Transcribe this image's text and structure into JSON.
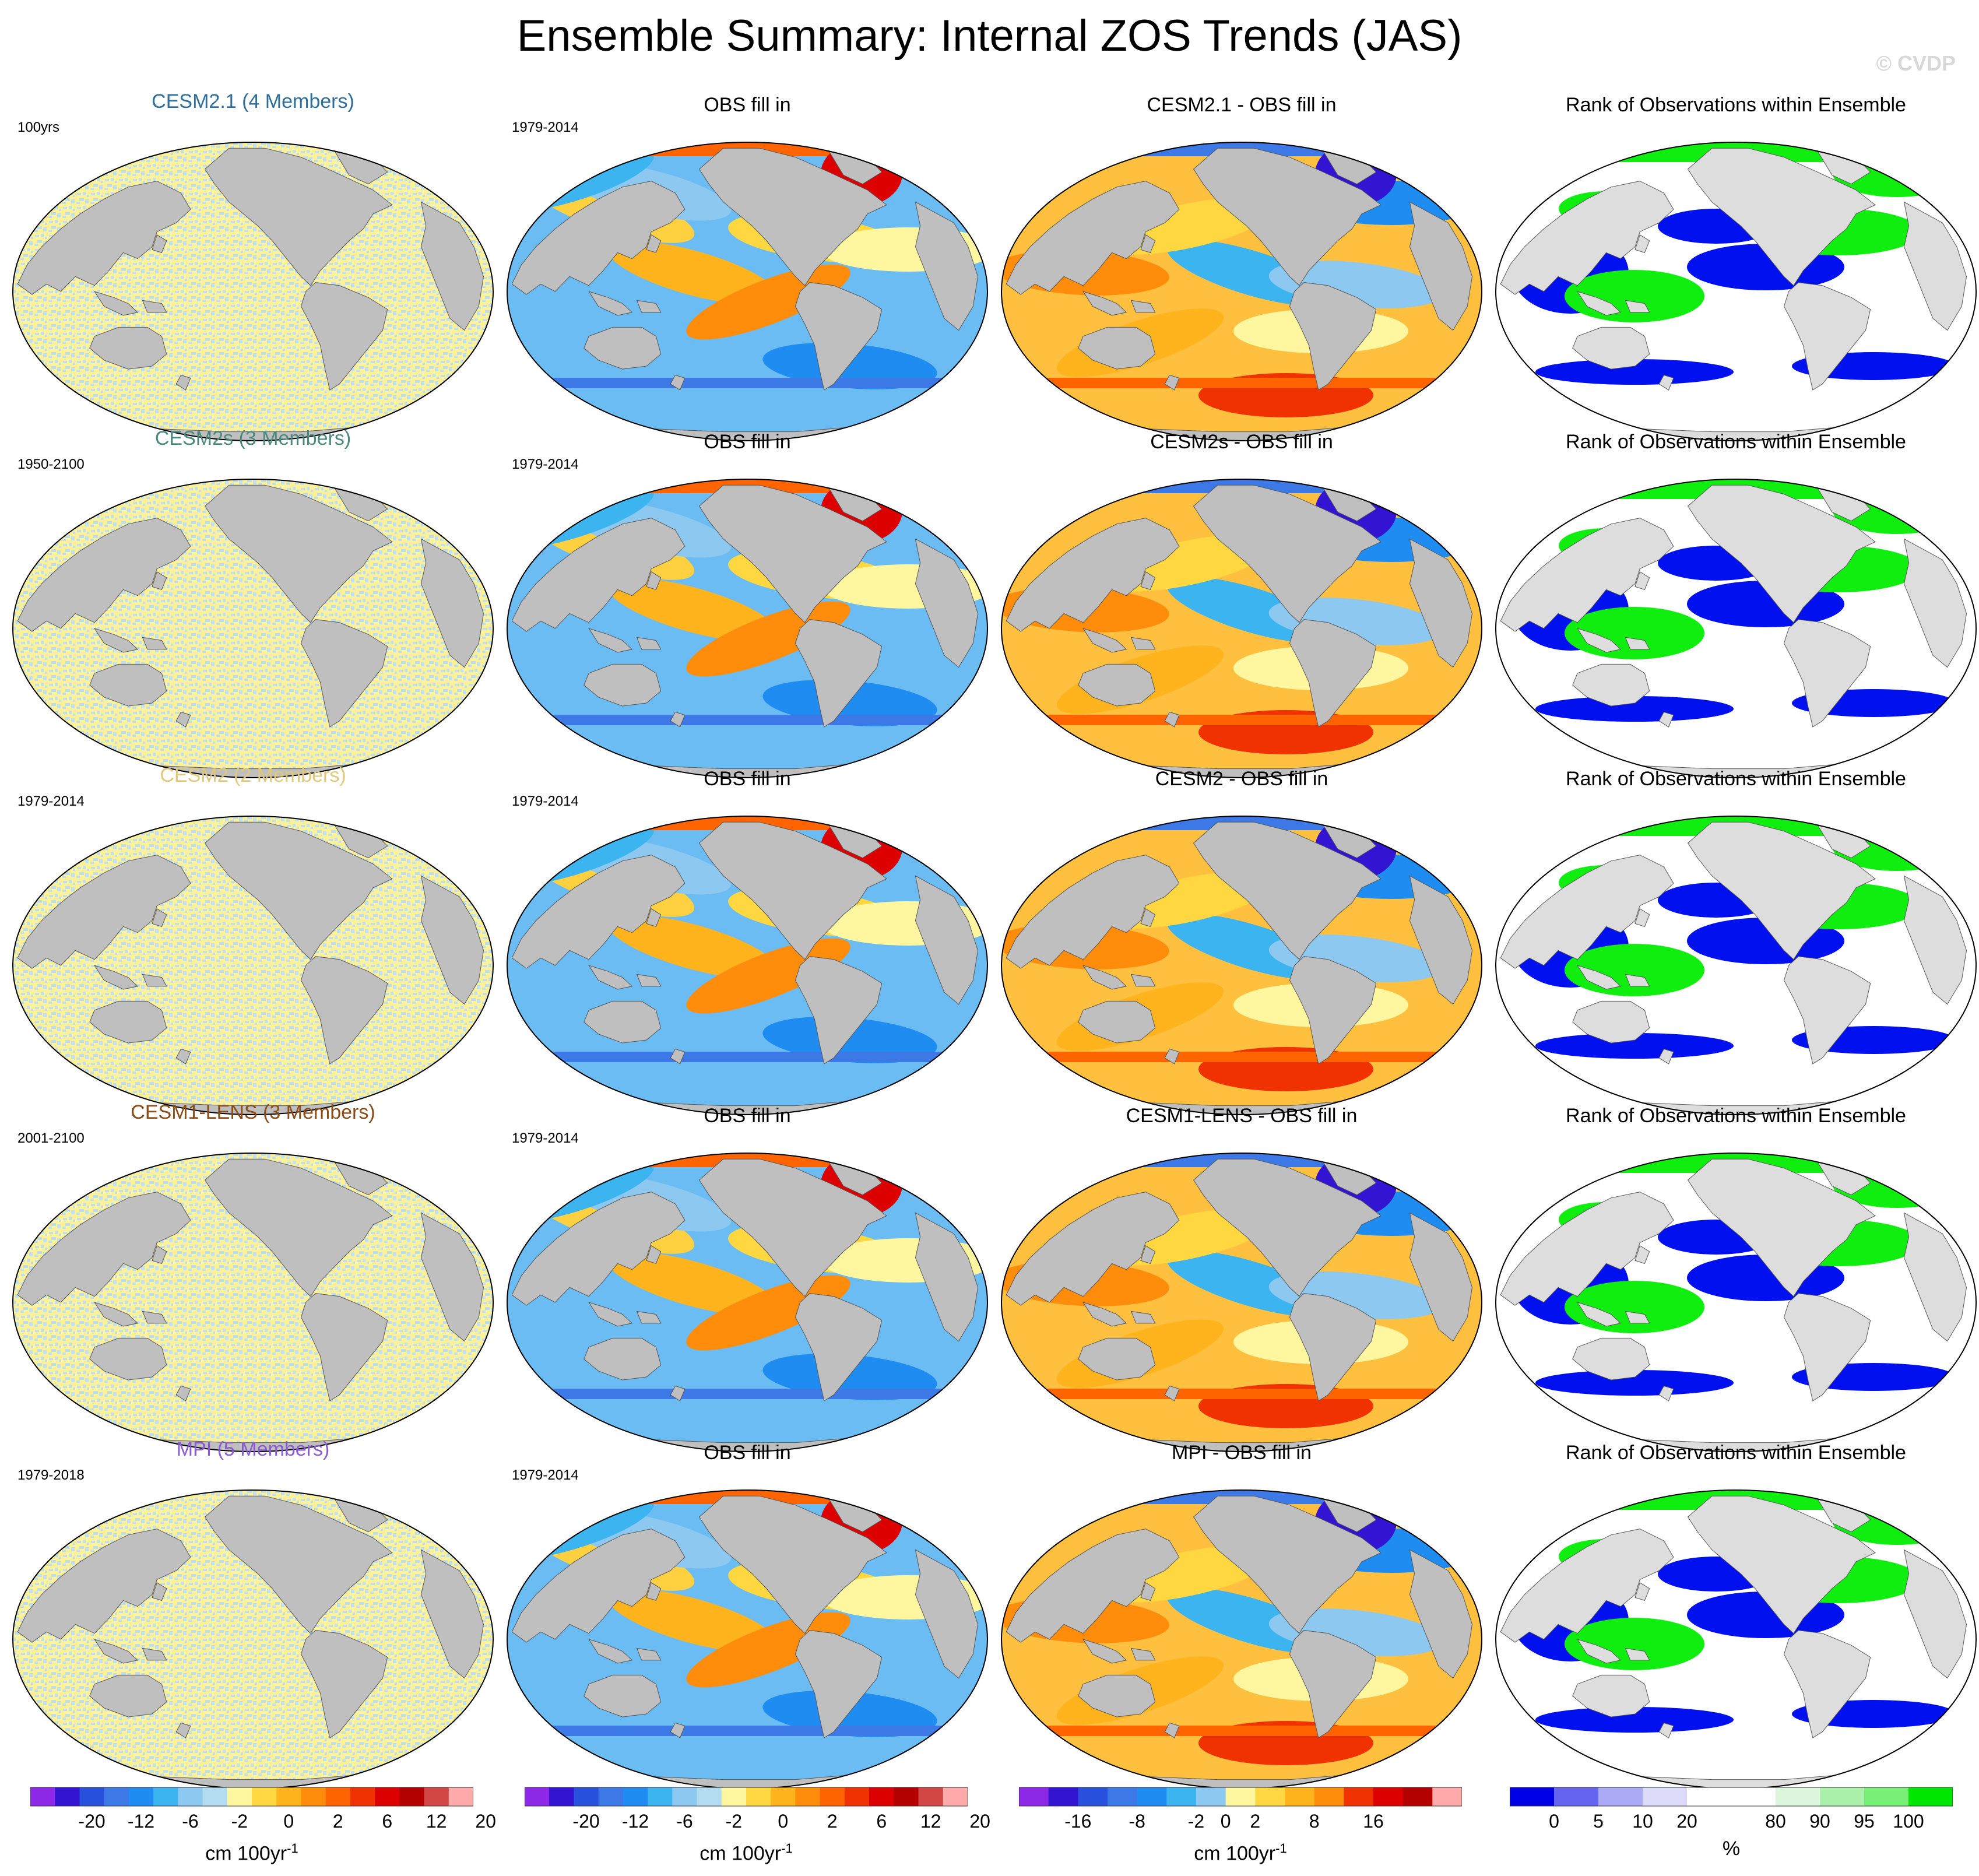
{
  "title": "Ensemble Summary: Internal ZOS Trends (JAS)",
  "watermark": "© CVDP",
  "colors": {
    "land": "#bfbfbf",
    "land_rank": "#dddddd",
    "ocean_noise_a": "#fff09a",
    "ocean_noise_b": "#bfe0f0",
    "rank_low": "#0010ee",
    "rank_high": "#10ee10",
    "rank_mid": "#ffffff"
  },
  "rows": [
    {
      "ensemble": {
        "title": "CESM2.1 (4 Members)",
        "color": "#2e6e9c",
        "period": "100yrs"
      },
      "obs": {
        "title": "OBS fill in",
        "period": "1979-2014"
      },
      "diff": {
        "title": "CESM2.1 - OBS fill in"
      },
      "rank": {
        "title": "Rank of Observations within Ensemble"
      }
    },
    {
      "ensemble": {
        "title": "CESM2s (3 Members)",
        "color": "#4a8a7e",
        "period": "1950-2100"
      },
      "obs": {
        "title": "OBS fill in",
        "period": "1979-2014"
      },
      "diff": {
        "title": "CESM2s - OBS fill in"
      },
      "rank": {
        "title": "Rank of Observations within Ensemble"
      }
    },
    {
      "ensemble": {
        "title": "CESM2 (2 Members)",
        "color": "#e0c878",
        "period": "1979-2014"
      },
      "obs": {
        "title": "OBS fill in",
        "period": "1979-2014"
      },
      "diff": {
        "title": "CESM2 - OBS fill in"
      },
      "rank": {
        "title": "Rank of Observations within Ensemble"
      }
    },
    {
      "ensemble": {
        "title": "CESM1-LENS (3 Members)",
        "color": "#8c4a14",
        "period": "2001-2100"
      },
      "obs": {
        "title": "OBS fill in",
        "period": "1979-2014"
      },
      "diff": {
        "title": "CESM1-LENS - OBS fill in"
      },
      "rank": {
        "title": "Rank of Observations within Ensemble"
      }
    },
    {
      "ensemble": {
        "title": "MPI (5 Members)",
        "color": "#8a5ad0",
        "period": "1979-2018"
      },
      "obs": {
        "title": "OBS fill in",
        "period": "1979-2014"
      },
      "diff": {
        "title": "MPI - OBS fill in"
      },
      "rank": {
        "title": "Rank of Observations within Ensemble"
      }
    }
  ],
  "colorbars": [
    {
      "colors": [
        "#8c28e6",
        "#3214d2",
        "#2850dc",
        "#3c78e6",
        "#1e8cf0",
        "#3cb4f0",
        "#8cc8f0",
        "#b4dcf0",
        "#fff7a0",
        "#ffd740",
        "#ffb41e",
        "#ff8c0a",
        "#ff6400",
        "#f03200",
        "#dc0000",
        "#b40000",
        "#d24646",
        "#ffaaaa"
      ],
      "ticks": [
        "-20",
        "-12",
        "-6",
        "-2",
        "0",
        "2",
        "6",
        "12",
        "20"
      ],
      "tick_positions": [
        2.5,
        4.5,
        6.5,
        8.5,
        10.5,
        12.5,
        14.5,
        16.5,
        18.5
      ],
      "unit": "cm 100yr",
      "unit_sup": "-1"
    },
    {
      "colors": [
        "#8c28e6",
        "#3214d2",
        "#2850dc",
        "#3c78e6",
        "#1e8cf0",
        "#3cb4f0",
        "#8cc8f0",
        "#b4dcf0",
        "#fff7a0",
        "#ffd740",
        "#ffb41e",
        "#ff8c0a",
        "#ff6400",
        "#f03200",
        "#dc0000",
        "#b40000",
        "#d24646",
        "#ffaaaa"
      ],
      "ticks": [
        "-20",
        "-12",
        "-6",
        "-2",
        "0",
        "2",
        "6",
        "12",
        "20"
      ],
      "tick_positions": [
        2.5,
        4.5,
        6.5,
        8.5,
        10.5,
        12.5,
        14.5,
        16.5,
        18.5
      ],
      "unit": "cm 100yr",
      "unit_sup": "-1"
    },
    {
      "colors": [
        "#8c28e6",
        "#3214d2",
        "#2850dc",
        "#3c78e6",
        "#1e8cf0",
        "#3cb4f0",
        "#8cc8f0",
        "#fff7a0",
        "#ffd740",
        "#ffb41e",
        "#ff8c0a",
        "#f03200",
        "#dc0000",
        "#b40000",
        "#ffaaaa"
      ],
      "ticks": [
        "-16",
        "-8",
        "-2",
        "0",
        "2",
        "8",
        "16"
      ],
      "tick_positions": [
        2,
        4,
        6,
        7,
        8,
        10,
        12
      ],
      "unit": "cm 100yr",
      "unit_sup": "-1"
    },
    {
      "colors": [
        "#0000e6",
        "#6464f0",
        "#aaaaf5",
        "#dcdcfa",
        "#ffffff",
        "#ffffff",
        "#dcf5dc",
        "#aaf0aa",
        "#78f078",
        "#00e600"
      ],
      "ticks": [
        "0",
        "5",
        "10",
        "20",
        "80",
        "90",
        "95",
        "100"
      ],
      "tick_positions": [
        1,
        2,
        3,
        4,
        6,
        7,
        8,
        9
      ],
      "unit": "%",
      "unit_sup": ""
    }
  ]
}
